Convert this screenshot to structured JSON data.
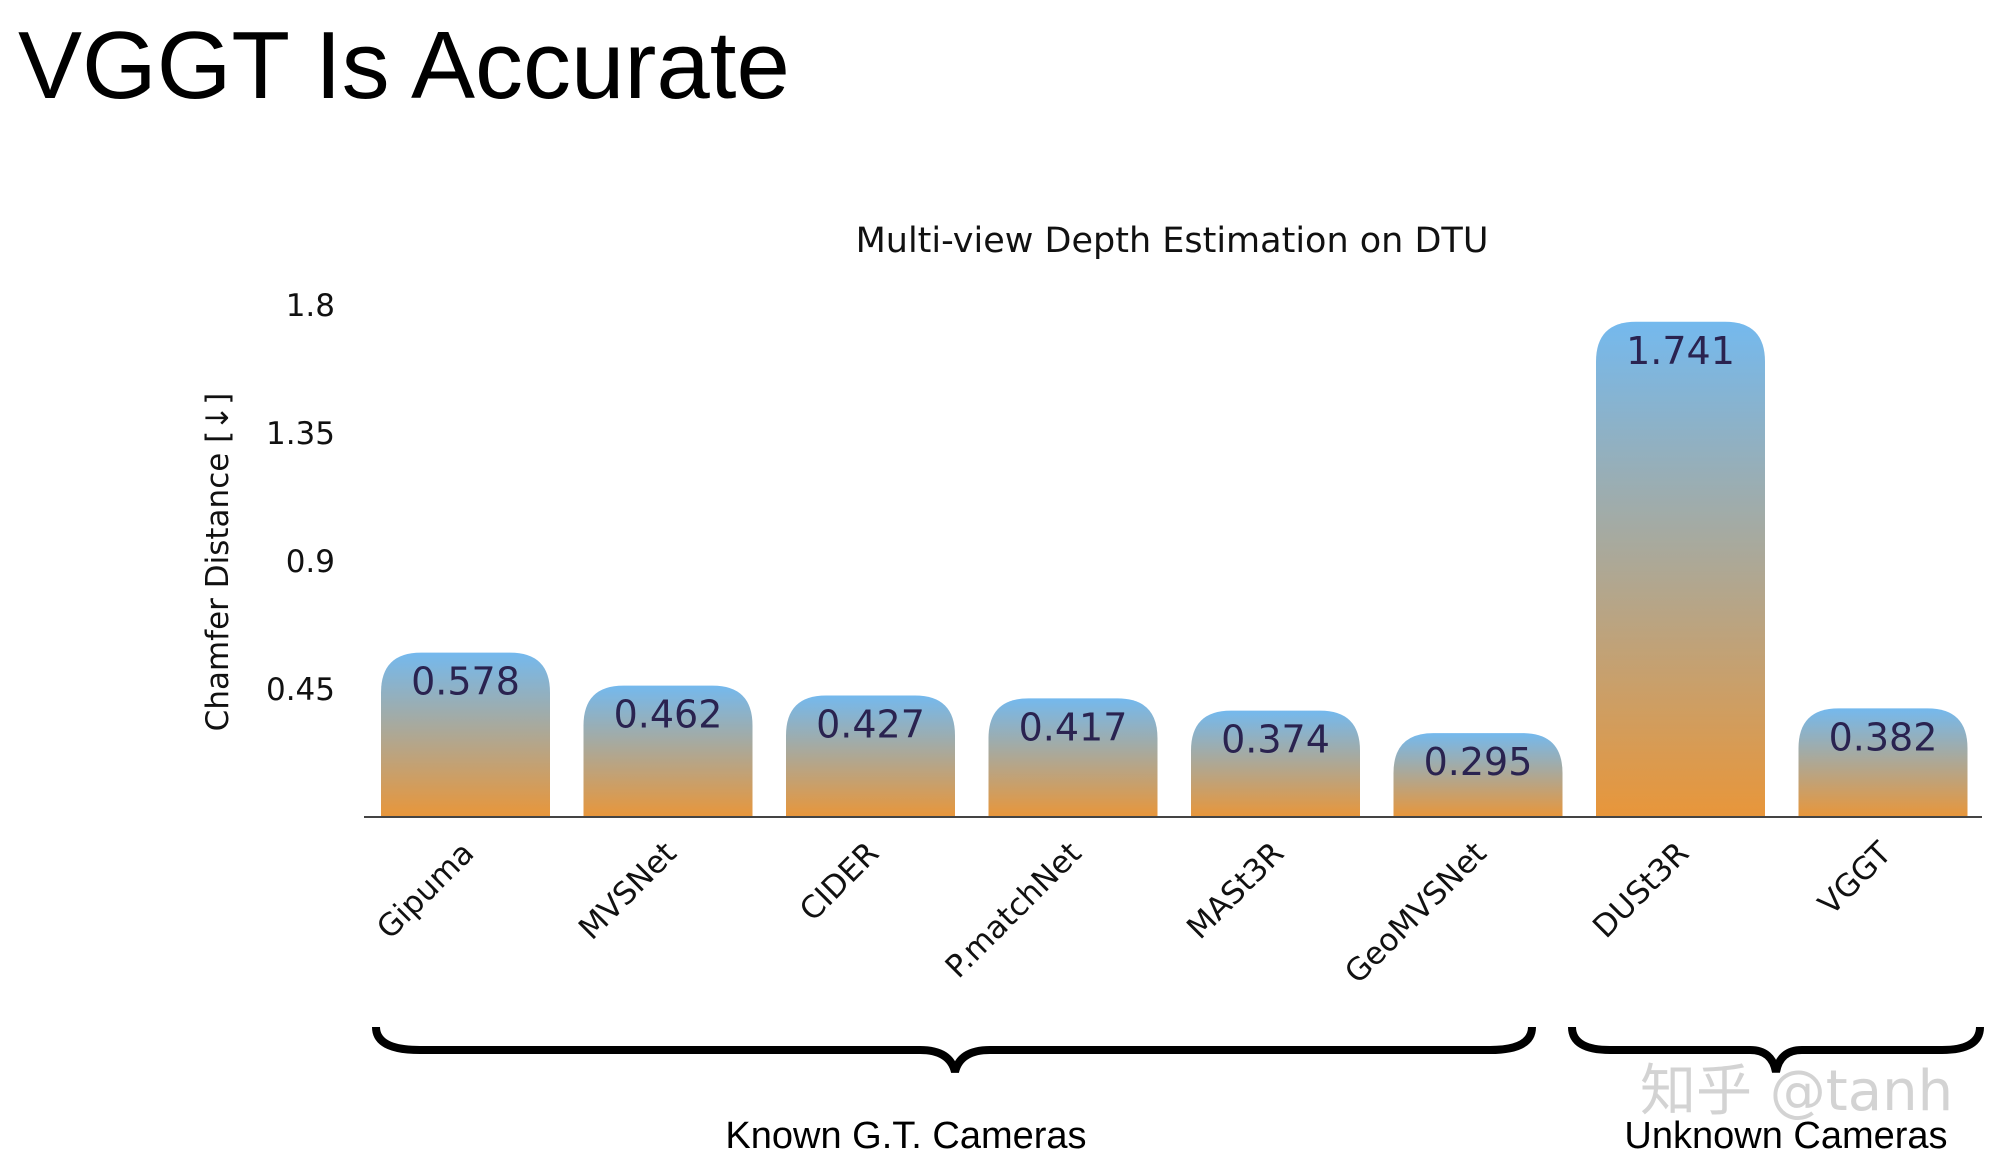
{
  "slide_title": "VGGT Is Accurate",
  "watermark": "知乎 @tanh",
  "chart_data": {
    "type": "bar",
    "title": "Multi-view Depth Estimation on DTU",
    "ylabel": "Chamfer Distance [↓]",
    "xlabel": "",
    "ylim": [
      0,
      1.8
    ],
    "yticks": [
      "0.45",
      "0.9",
      "1.35",
      "1.8"
    ],
    "grid": false,
    "categories": [
      "Gipuma",
      "MVSNet",
      "CIDER",
      "P.matchNet",
      "MASt3R",
      "GeoMVSNet",
      "DUSt3R",
      "VGGT"
    ],
    "values": [
      0.578,
      0.462,
      0.427,
      0.417,
      0.374,
      0.295,
      1.741,
      0.382
    ],
    "value_labels": [
      "0.578",
      "0.462",
      "0.427",
      "0.417",
      "0.374",
      "0.295",
      "1.741",
      "0.382"
    ],
    "groups": [
      {
        "label": "Known G.T. Cameras",
        "categories": [
          "Gipuma",
          "MVSNet",
          "CIDER",
          "P.matchNet",
          "MASt3R",
          "GeoMVSNet"
        ]
      },
      {
        "label": "Unknown Cameras",
        "categories": [
          "DUSt3R",
          "VGGT"
        ]
      }
    ],
    "colors": {
      "bar_top": "#74b9ee",
      "bar_bottom": "#e8963a",
      "value_text": "#2a2350"
    }
  }
}
